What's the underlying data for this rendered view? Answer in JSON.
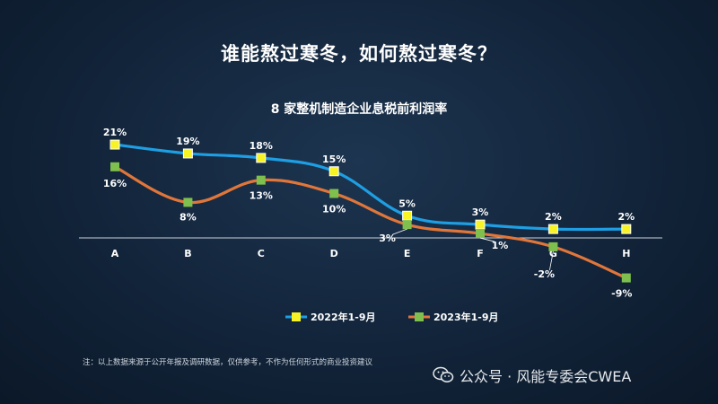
{
  "slide_title": "谁能熬过寒冬，如何熬过寒冬？",
  "footnote": "注：以上数据来源于公开年报及调研数据，仅供参考，不作为任何形式的商业投资建议",
  "watermark": {
    "icon": "wechat-icon",
    "text": "公众号 · 风能专委会CWEA"
  },
  "colors": {
    "series_2022": "#1e9ee3",
    "series_2023": "#e0763a",
    "marker_2022": "#f7f325",
    "marker_2023": "#7fbf4e"
  },
  "chart_data": {
    "type": "line",
    "title": "8 家整机制造企业息税前利润率",
    "categories": [
      "A",
      "B",
      "C",
      "D",
      "E",
      "F",
      "G",
      "H"
    ],
    "ylim": [
      -10,
      22
    ],
    "grid": false,
    "legend_position": "bottom",
    "series": [
      {
        "name": "2022年1-9月",
        "values": [
          21,
          19,
          18,
          15,
          5,
          3,
          2,
          2
        ],
        "labels": [
          "21%",
          "19%",
          "18%",
          "15%",
          "5%",
          "3%",
          "2%",
          "2%"
        ]
      },
      {
        "name": "2023年1-9月",
        "values": [
          16,
          8,
          13,
          10,
          3,
          1,
          -2,
          -9
        ],
        "labels": [
          "16%",
          "8%",
          "13%",
          "10%",
          "3%",
          "1%",
          "-2%",
          "-9%"
        ]
      }
    ]
  }
}
